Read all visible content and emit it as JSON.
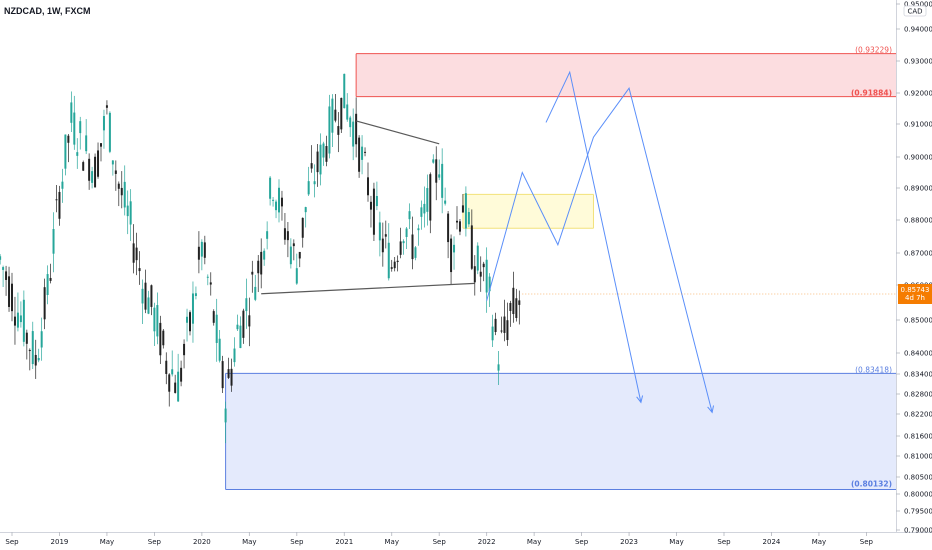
{
  "header": {
    "title": "NZDCAD, 1W, FXCM"
  },
  "price_axis": {
    "unit_label": "CAD"
  },
  "current_price": {
    "value": "0.85743",
    "countdown": "4d 7h",
    "color": "#f57c00"
  },
  "colors": {
    "up": "#26a69a",
    "down": "#222222",
    "resistance_line": "#ef5350",
    "resistance_fill": "#fcdde0",
    "support_line": "#5b7fe0",
    "support_fill": "#e4eafc",
    "mid_line": "#f2e27a",
    "mid_fill": "#fffbd9",
    "projection": "#5b8ff9",
    "trendline": "#5a5a5a"
  },
  "chart_data": {
    "type": "candlestick",
    "title": "NZDCAD, 1W, FXCM",
    "xlabel": "",
    "ylabel": "",
    "ylim": [
      0.79,
      0.95
    ],
    "grid": false,
    "y_ticks": [
      "0.95000",
      "0.94000",
      "0.93000",
      "0.92000",
      "0.91000",
      "0.90000",
      "0.89000",
      "0.88000",
      "0.87000",
      "0.86000",
      "0.85000",
      "0.84000",
      "0.83400",
      "0.82800",
      "0.82200",
      "0.81600",
      "0.81000",
      "0.80500",
      "0.80000",
      "0.79500",
      "0.79000"
    ],
    "x_ticks": [
      {
        "label": "Sep",
        "x": "2018-09"
      },
      {
        "label": "2019",
        "x": "2019-01"
      },
      {
        "label": "May",
        "x": "2019-05"
      },
      {
        "label": "Sep",
        "x": "2019-09"
      },
      {
        "label": "2020",
        "x": "2020-01"
      },
      {
        "label": "May",
        "x": "2020-05"
      },
      {
        "label": "Sep",
        "x": "2020-09"
      },
      {
        "label": "2021",
        "x": "2021-01"
      },
      {
        "label": "May",
        "x": "2021-05"
      },
      {
        "label": "Sep",
        "x": "2021-09"
      },
      {
        "label": "2022",
        "x": "2022-01"
      },
      {
        "label": "May",
        "x": "2022-05"
      },
      {
        "label": "Sep",
        "x": "2022-09"
      },
      {
        "label": "2023",
        "x": "2023-01"
      },
      {
        "label": "May",
        "x": "2023-05"
      },
      {
        "label": "Sep",
        "x": "2023-09"
      },
      {
        "label": "2024",
        "x": "2024-01"
      },
      {
        "label": "May",
        "x": "2024-05"
      },
      {
        "label": "Sep",
        "x": "2024-09"
      }
    ],
    "zones": [
      {
        "name": "resistance",
        "top": 0.93229,
        "bottom": 0.91884,
        "start": "2021-02",
        "top_label": "(0.93229)",
        "bottom_label": "(0.91884)"
      },
      {
        "name": "mid",
        "top": 0.888,
        "bottom": 0.8775,
        "start": "2021-11",
        "end": "2022-10"
      },
      {
        "name": "support",
        "top": 0.83418,
        "bottom": 0.80132,
        "start": "2020-03",
        "top_label": "(0.83418)",
        "bottom_label": "(0.80132)"
      }
    ],
    "trendlines": [
      {
        "x1": "2020-06",
        "y1": 0.8575,
        "x2": "2021-12",
        "y2": 0.8605
      },
      {
        "x1": "2021-02",
        "y1": 0.911,
        "x2": "2021-09",
        "y2": 0.904
      }
    ],
    "projections": [
      {
        "name": "path-1",
        "points": [
          [
            "2022-01",
            "0.8555"
          ],
          [
            "2022-04",
            "0.895"
          ],
          [
            "2022-07",
            "0.8725"
          ],
          [
            "2022-10",
            "0.906"
          ],
          [
            "2023-01",
            "0.9215"
          ],
          [
            "2023-08",
            "0.8225"
          ]
        ]
      },
      {
        "name": "path-2",
        "points": [
          [
            "2022-06",
            "0.9105"
          ],
          [
            "2022-08",
            "0.9265"
          ],
          [
            "2023-02",
            "0.8255"
          ]
        ]
      }
    ],
    "anchors": [
      {
        "x": "2018-08",
        "o": 0.876,
        "c": 0.868
      },
      {
        "x": "2018-10",
        "o": 0.862,
        "c": 0.848
      },
      {
        "x": "2018-11",
        "o": 0.848,
        "c": 0.838
      },
      {
        "x": "2018-12",
        "o": 0.84,
        "c": 0.858
      },
      {
        "x": "2019-01",
        "o": 0.858,
        "c": 0.888
      },
      {
        "x": "2019-02",
        "o": 0.888,
        "c": 0.911
      },
      {
        "x": "2019-03",
        "o": 0.911,
        "c": 0.903
      },
      {
        "x": "2019-04",
        "o": 0.903,
        "c": 0.896
      },
      {
        "x": "2019-05",
        "o": 0.896,
        "c": 0.913
      },
      {
        "x": "2019-06",
        "o": 0.913,
        "c": 0.891
      },
      {
        "x": "2019-07",
        "o": 0.891,
        "c": 0.878
      },
      {
        "x": "2019-08",
        "o": 0.878,
        "c": 0.861
      },
      {
        "x": "2019-09",
        "o": 0.861,
        "c": 0.851
      },
      {
        "x": "2019-10",
        "o": 0.851,
        "c": 0.838
      },
      {
        "x": "2019-11",
        "o": 0.838,
        "c": 0.831
      },
      {
        "x": "2019-12",
        "o": 0.831,
        "c": 0.848
      },
      {
        "x": "2020-01",
        "o": 0.848,
        "c": 0.872
      },
      {
        "x": "2020-02",
        "o": 0.872,
        "c": 0.851
      },
      {
        "x": "2020-03",
        "o": 0.851,
        "c": 0.826
      },
      {
        "x": "2020-04",
        "o": 0.826,
        "c": 0.846
      },
      {
        "x": "2020-05",
        "o": 0.846,
        "c": 0.856
      },
      {
        "x": "2020-06",
        "o": 0.856,
        "c": 0.869
      },
      {
        "x": "2020-07",
        "o": 0.869,
        "c": 0.892
      },
      {
        "x": "2020-08",
        "o": 0.892,
        "c": 0.878
      },
      {
        "x": "2020-09",
        "o": 0.878,
        "c": 0.866
      },
      {
        "x": "2020-10",
        "o": 0.866,
        "c": 0.889
      },
      {
        "x": "2020-11",
        "o": 0.889,
        "c": 0.899
      },
      {
        "x": "2020-12",
        "o": 0.899,
        "c": 0.911
      },
      {
        "x": "2021-01",
        "o": 0.911,
        "c": 0.918
      },
      {
        "x": "2021-02",
        "o": 0.918,
        "c": 0.907
      },
      {
        "x": "2021-03",
        "o": 0.907,
        "c": 0.891
      },
      {
        "x": "2021-04",
        "o": 0.891,
        "c": 0.876
      },
      {
        "x": "2021-05",
        "o": 0.876,
        "c": 0.866
      },
      {
        "x": "2021-06",
        "o": 0.866,
        "c": 0.879
      },
      {
        "x": "2021-07",
        "o": 0.879,
        "c": 0.872
      },
      {
        "x": "2021-08",
        "o": 0.872,
        "c": 0.884
      },
      {
        "x": "2021-09",
        "o": 0.884,
        "c": 0.899
      },
      {
        "x": "2021-10",
        "o": 0.899,
        "c": 0.872
      },
      {
        "x": "2021-11",
        "o": 0.872,
        "c": 0.886
      },
      {
        "x": "2021-12",
        "o": 0.886,
        "c": 0.867
      },
      {
        "x": "2022-01",
        "o": 0.867,
        "c": 0.861
      },
      {
        "x": "2022-02",
        "o": 0.861,
        "c": 0.84
      },
      {
        "x": "2022-03",
        "o": 0.84,
        "c": 0.852
      },
      {
        "x": "2022-04",
        "o": 0.852,
        "c": 0.857
      }
    ]
  }
}
